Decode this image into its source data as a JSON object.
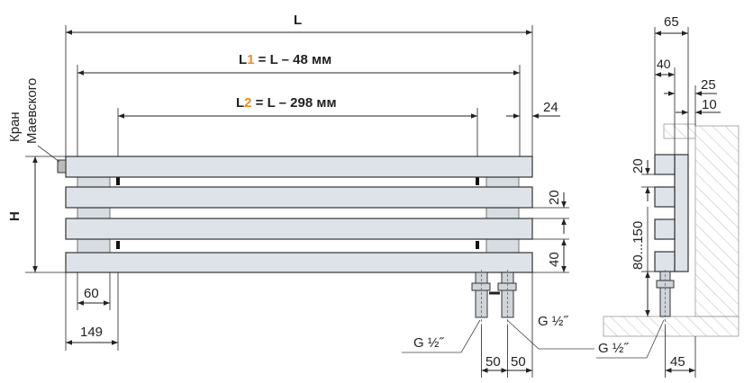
{
  "front_view": {
    "label_L": "L",
    "label_L1_prefix": "L",
    "label_L1_index": "1",
    "label_L1_suffix": " = L – 48 мм",
    "label_L2_prefix": "L",
    "label_L2_index": "2",
    "label_L2_suffix": " = L – 298 мм",
    "label_H": "H",
    "valve_label_line1": "Кран",
    "valve_label_line2": "Маевского",
    "dim_24": "24",
    "dim_20": "20",
    "dim_40": "40",
    "dim_60": "60",
    "dim_149": "149",
    "dim_50_left": "50",
    "dim_50_right": "50",
    "thread_left": "G ½˝",
    "thread_right": "G ½˝"
  },
  "side_view": {
    "dim_65": "65",
    "dim_40": "40",
    "dim_25": "25",
    "dim_10": "10",
    "dim_20": "20",
    "dim_80_150": "80...150",
    "dim_45": "45",
    "thread": "G ½˝"
  },
  "colors": {
    "bar_fill": "#dde3e8",
    "accent": "#f08a24"
  }
}
